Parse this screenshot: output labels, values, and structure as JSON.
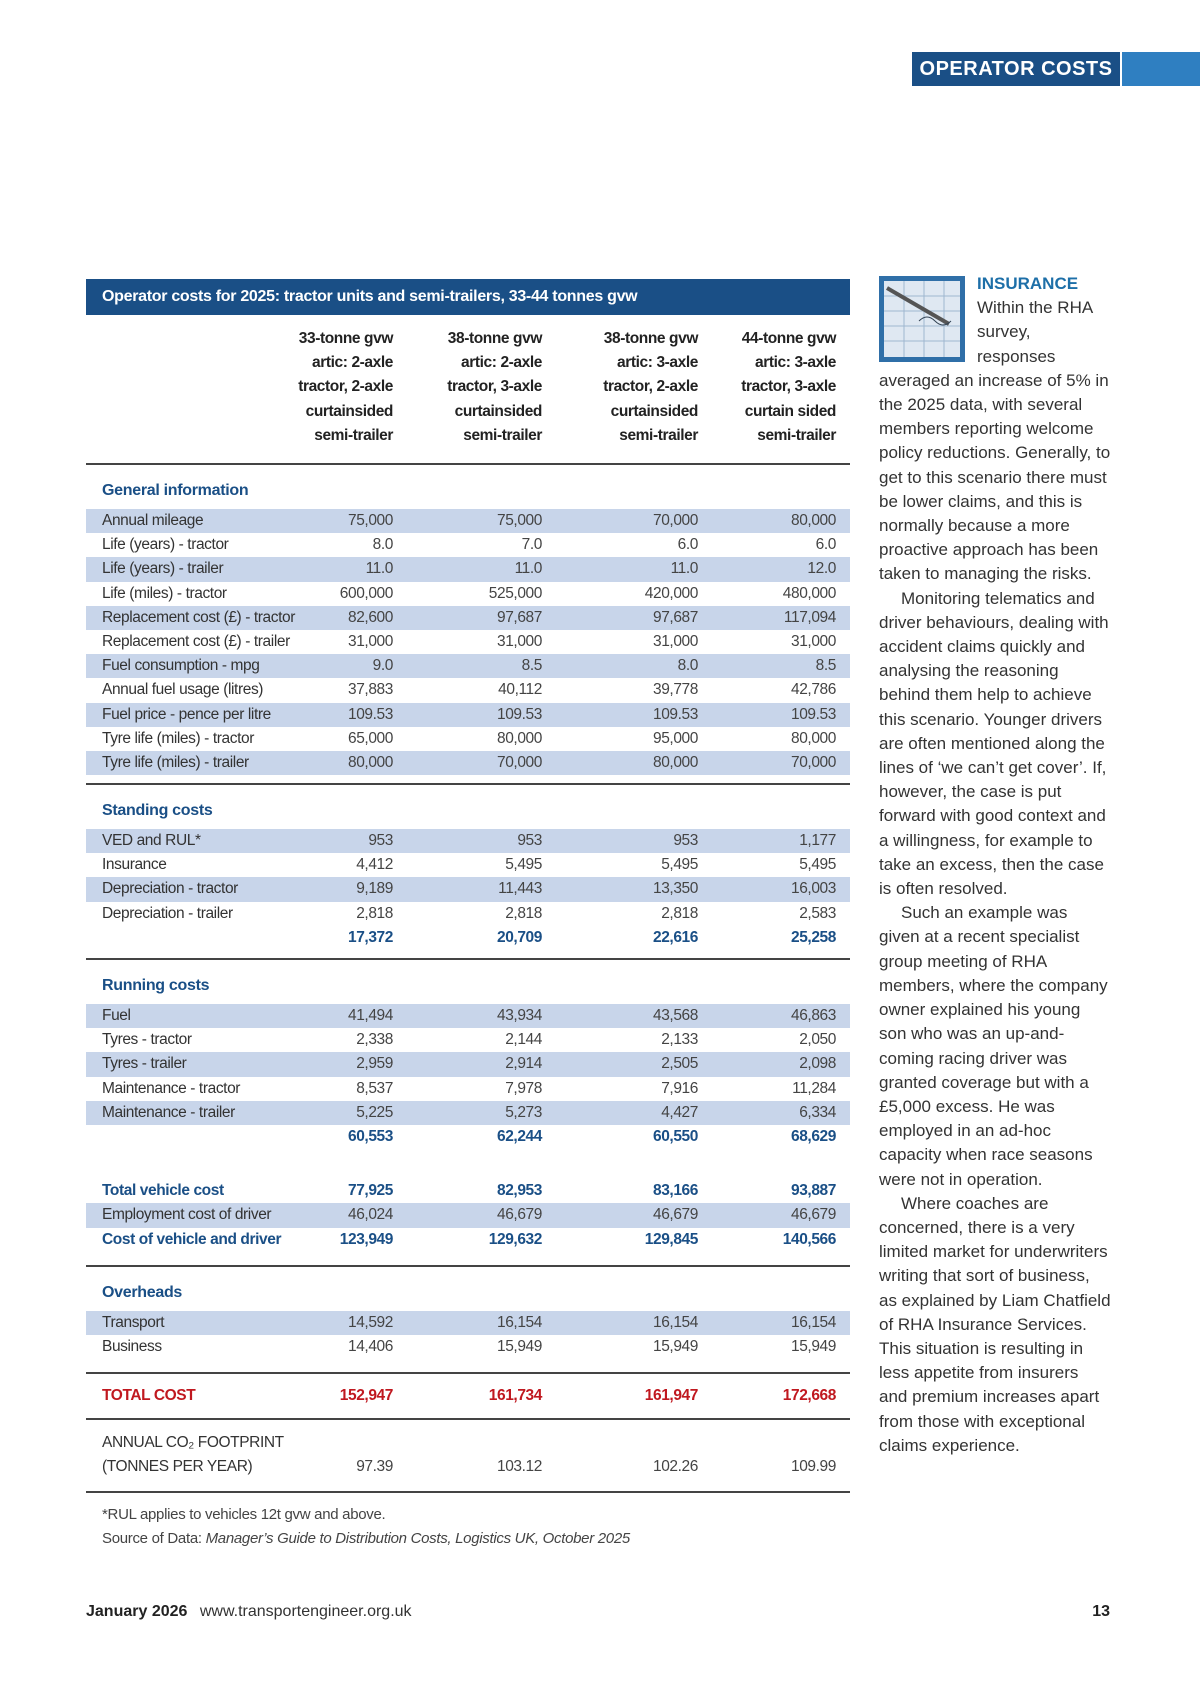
{
  "header": {
    "section": "OPERATOR COSTS"
  },
  "table": {
    "title": "Operator costs for 2025: tractor units and semi-trailers, 33-44 tonnes gvw",
    "columns": [
      [
        "33-tonne gvw",
        "artic: 2-axle",
        "tractor, 2-axle",
        "curtainsided",
        "semi-trailer"
      ],
      [
        "38-tonne gvw",
        "artic: 2-axle",
        "tractor, 3-axle",
        "curtainsided",
        "semi-trailer"
      ],
      [
        "38-tonne gvw",
        "artic: 3-axle",
        "tractor, 2-axle",
        "curtainsided",
        "semi-trailer"
      ],
      [
        "44-tonne gvw",
        "artic: 3-axle",
        "tractor, 3-axle",
        "curtain sided",
        "semi-trailer"
      ]
    ],
    "sections": [
      {
        "heading": "General information",
        "rows": [
          {
            "label": "Annual mileage",
            "values": [
              "75,000",
              "75,000",
              "70,000",
              "80,000"
            ]
          },
          {
            "label": "Life (years) - tractor",
            "values": [
              "8.0",
              "7.0",
              "6.0",
              "6.0"
            ]
          },
          {
            "label": "Life (years) - trailer",
            "values": [
              "11.0",
              "11.0",
              "11.0",
              "12.0"
            ]
          },
          {
            "label": "Life (miles) - tractor",
            "values": [
              "600,000",
              "525,000",
              "420,000",
              "480,000"
            ]
          },
          {
            "label": "Replacement cost (£) - tractor",
            "values": [
              "82,600",
              "97,687",
              "97,687",
              "117,094"
            ]
          },
          {
            "label": "Replacement cost (£) - trailer",
            "values": [
              "31,000",
              "31,000",
              "31,000",
              "31,000"
            ]
          },
          {
            "label": "Fuel consumption - mpg",
            "values": [
              "9.0",
              "8.5",
              "8.0",
              "8.5"
            ]
          },
          {
            "label": "Annual fuel usage (litres)",
            "values": [
              "37,883",
              "40,112",
              "39,778",
              "42,786"
            ]
          },
          {
            "label": "Fuel price - pence per litre",
            "values": [
              "109.53",
              "109.53",
              "109.53",
              "109.53"
            ]
          },
          {
            "label": "Tyre life (miles) - tractor",
            "values": [
              "65,000",
              "80,000",
              "95,000",
              "80,000"
            ]
          },
          {
            "label": "Tyre life (miles) - trailer",
            "values": [
              "80,000",
              "70,000",
              "80,000",
              "70,000"
            ]
          }
        ]
      },
      {
        "heading": "Standing costs",
        "rows": [
          {
            "label": "VED and RUL*",
            "values": [
              "953",
              "953",
              "953",
              "1,177"
            ]
          },
          {
            "label": "Insurance",
            "values": [
              "4,412",
              "5,495",
              "5,495",
              "5,495"
            ]
          },
          {
            "label": "Depreciation - tractor",
            "values": [
              "9,189",
              "11,443",
              "13,350",
              "16,003"
            ]
          },
          {
            "label": "Depreciation - trailer",
            "values": [
              "2,818",
              "2,818",
              "2,818",
              "2,583"
            ]
          }
        ],
        "subtotal": [
          "17,372",
          "20,709",
          "22,616",
          "25,258"
        ]
      },
      {
        "heading": "Running costs",
        "rows": [
          {
            "label": "Fuel",
            "values": [
              "41,494",
              "43,934",
              "43,568",
              "46,863"
            ]
          },
          {
            "label": "Tyres - tractor",
            "values": [
              "2,338",
              "2,144",
              "2,133",
              "2,050"
            ]
          },
          {
            "label": "Tyres - trailer",
            "values": [
              "2,959",
              "2,914",
              "2,505",
              "2,098"
            ]
          },
          {
            "label": "Maintenance - tractor",
            "values": [
              "8,537",
              "7,978",
              "7,916",
              "11,284"
            ]
          },
          {
            "label": "Maintenance - trailer",
            "values": [
              "5,225",
              "5,273",
              "4,427",
              "6,334"
            ]
          }
        ],
        "subtotal": [
          "60,553",
          "62,244",
          "60,550",
          "68,629"
        ]
      }
    ],
    "vehicle_total": {
      "label": "Total vehicle cost",
      "values": [
        "77,925",
        "82,953",
        "83,166",
        "93,887"
      ]
    },
    "driver_row": {
      "label": "Employment cost of driver",
      "values": [
        "46,024",
        "46,679",
        "46,679",
        "46,679"
      ]
    },
    "vehicle_driver_total": {
      "label": "Cost of vehicle and driver",
      "values": [
        "123,949",
        "129,632",
        "129,845",
        "140,566"
      ]
    },
    "overheads": {
      "heading": "Overheads",
      "rows": [
        {
          "label": "Transport",
          "values": [
            "14,592",
            "16,154",
            "16,154",
            "16,154"
          ]
        },
        {
          "label": "Business",
          "values": [
            "14,406",
            "15,949",
            "15,949",
            "15,949"
          ]
        }
      ]
    },
    "total_cost": {
      "label": "TOTAL COST",
      "values": [
        "152,947",
        "161,734",
        "161,947",
        "172,668"
      ]
    },
    "co2": {
      "label": [
        "ANNUAL CO₂ FOOTPRINT",
        "(TONNES PER YEAR)"
      ],
      "values": [
        "97.39",
        "103.12",
        "102.26",
        "109.99"
      ]
    },
    "footnote": "*RUL applies to vehicles 12t gvw and above.",
    "source_prefix": "Source of Data:",
    "source": "Manager’s Guide to Distribution Costs, Logistics UK, October 2025"
  },
  "article": {
    "heading": "INSURANCE",
    "paragraphs": [
      "Within the RHA survey, responses averaged an increase of 5% in the 2025 data, with several members reporting welcome policy reductions. Generally, to get to this scenario there must be lower claims, and this is normally because a more proactive approach has been taken to managing the risks.",
      "Monitoring telematics and driver behaviours, dealing with accident claims quickly and analysing the reasoning behind them help to achieve this scenario. Younger drivers are often mentioned along the lines of ‘we can’t get cover’. If, however, the case is put forward with good context and a willingness, for example to take an excess, then the case is often resolved.",
      "Such an example was given at a recent specialist group meeting of RHA members, where the company owner explained his young son who was an up-and-coming racing driver was granted coverage but with a £5,000 excess. He was employed in an ad-hoc capacity when race seasons were not in operation.",
      "Where coaches are concerned, there is a very limited market for underwriters writing that sort of business, as explained by Liam Chatfield of RHA Insurance Services. This situation is resulting in less appetite from insurers and premium increases apart from those with exceptional claims experience."
    ]
  },
  "footer": {
    "date": "January 2026",
    "url": "www.transportengineer.org.uk",
    "page": "13"
  }
}
